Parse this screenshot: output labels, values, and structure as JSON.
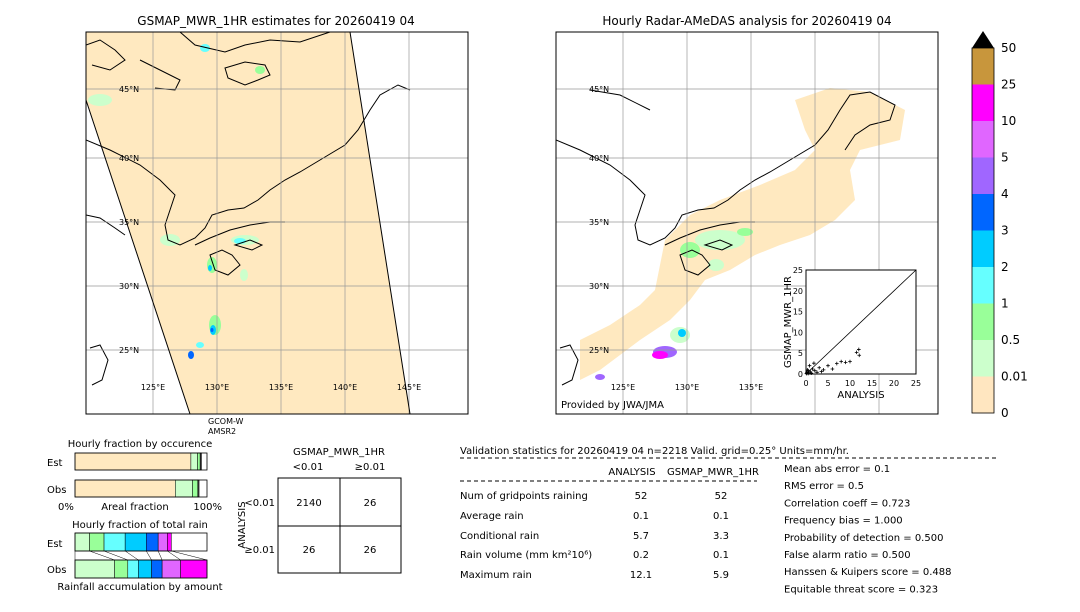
{
  "left_map": {
    "title": "GSMAP_MWR_1HR estimates for 20260419 04",
    "lat_labels": [
      "45°N",
      "40°N",
      "35°N",
      "30°N",
      "25°N"
    ],
    "lon_labels": [
      "125°E",
      "130°E",
      "135°E",
      "140°E",
      "145°E"
    ],
    "satellite_label_1": "GCOM-W",
    "satellite_label_2": "AMSR2"
  },
  "right_map": {
    "title": "Hourly Radar-AMeDAS analysis for 20260419 04",
    "lat_labels": [
      "45°N",
      "40°N",
      "35°N",
      "30°N",
      "25°N"
    ],
    "lon_labels": [
      "125°E",
      "130°E",
      "135°E"
    ],
    "provider": "Provided by JWA/JMA"
  },
  "colorbar": {
    "labels": [
      "50",
      "25",
      "10",
      "5",
      "4",
      "3",
      "2",
      "1",
      "0.5",
      "0.01",
      "0"
    ],
    "colors": [
      "#c8963c",
      "#ff00ff",
      "#e066ff",
      "#a066ff",
      "#0066ff",
      "#00ccff",
      "#66ffff",
      "#99ff99",
      "#ccffcc",
      "#ffe6c0"
    ]
  },
  "chart_data": [
    {
      "type": "scatter",
      "xlabel": "ANALYSIS",
      "ylabel": "GSMAP_MWR_1HR",
      "xlim": [
        0,
        25
      ],
      "ylim": [
        0,
        25
      ],
      "xticks": [
        "0",
        "5",
        "10",
        "15",
        "20",
        "25"
      ],
      "yticks": [
        "0",
        "5",
        "10",
        "15",
        "20",
        "25"
      ],
      "points": [
        [
          0.2,
          0.3
        ],
        [
          0.5,
          0.8
        ],
        [
          1,
          0.5
        ],
        [
          1.5,
          1.2
        ],
        [
          2,
          0.8
        ],
        [
          0.8,
          2
        ],
        [
          3,
          1.5
        ],
        [
          0.3,
          1
        ],
        [
          1.2,
          0.2
        ],
        [
          2.5,
          0.4
        ],
        [
          4,
          1
        ],
        [
          5,
          2
        ],
        [
          6,
          1.2
        ],
        [
          7,
          2.5
        ],
        [
          8,
          3
        ],
        [
          9,
          2.8
        ],
        [
          10,
          3
        ],
        [
          11.5,
          5.2
        ],
        [
          12,
          5.9
        ],
        [
          12.1,
          4.5
        ],
        [
          0.5,
          0.1
        ],
        [
          1.8,
          2.6
        ],
        [
          3.5,
          0.6
        ],
        [
          0.1,
          0.1
        ],
        [
          0.6,
          0.4
        ]
      ]
    },
    {
      "type": "bar",
      "title": "Hourly fraction by occurence",
      "xlabel": "Areal fraction",
      "tick_left": "0%",
      "tick_right": "100%",
      "rows": [
        {
          "name": "Est",
          "fractions": [
            0.878,
            0.05,
            0.02,
            0.01
          ]
        },
        {
          "name": "Obs",
          "fractions": [
            0.76,
            0.13,
            0.04,
            0.01
          ]
        }
      ]
    },
    {
      "type": "bar",
      "title": "Hourly fraction of total rain",
      "xlabel": "Rainfall accumulation by amount",
      "rows": [
        {
          "name": "Est",
          "fractions": [
            0.11,
            0.11,
            0.16,
            0.16,
            0.09,
            0.07,
            0.03
          ]
        },
        {
          "name": "Obs",
          "fractions": [
            0.3,
            0.1,
            0.08,
            0.1,
            0.08,
            0.14,
            0.2
          ]
        }
      ]
    },
    {
      "type": "table",
      "title": "GSMAP_MWR_1HR",
      "col_headers": [
        "<0.01",
        "≥0.01"
      ],
      "row_axis_label": "ANALYSIS",
      "row_headers": [
        "<0.01",
        "≥0.01"
      ],
      "cells": [
        [
          "2140",
          "26"
        ],
        [
          "26",
          "26"
        ]
      ]
    }
  ],
  "validation": {
    "header": "Validation statistics for 20260419 04  n=2218 Valid. grid=0.25° Units=mm/hr.",
    "col_analysis": "ANALYSIS",
    "col_gsmap": "GSMAP_MWR_1HR",
    "rows": [
      {
        "label": "Num of gridpoints raining",
        "analysis": "52",
        "gsmap": "52"
      },
      {
        "label": "Average rain",
        "analysis": "0.1",
        "gsmap": "0.1"
      },
      {
        "label": "Conditional rain",
        "analysis": "5.7",
        "gsmap": "3.3"
      },
      {
        "label": "Rain volume (mm km²10⁶)",
        "analysis": "0.2",
        "gsmap": "0.1"
      },
      {
        "label": "Maximum rain",
        "analysis": "12.1",
        "gsmap": "5.9"
      }
    ],
    "scores": [
      "Mean abs error =    0.1",
      "RMS error =    0.5",
      "Correlation coeff =  0.723",
      "Frequency bias =  1.000",
      "Probability of detection =  0.500",
      "False alarm ratio =  0.500",
      "Hanssen & Kuipers score =  0.488",
      "Equitable threat score =  0.323"
    ]
  }
}
